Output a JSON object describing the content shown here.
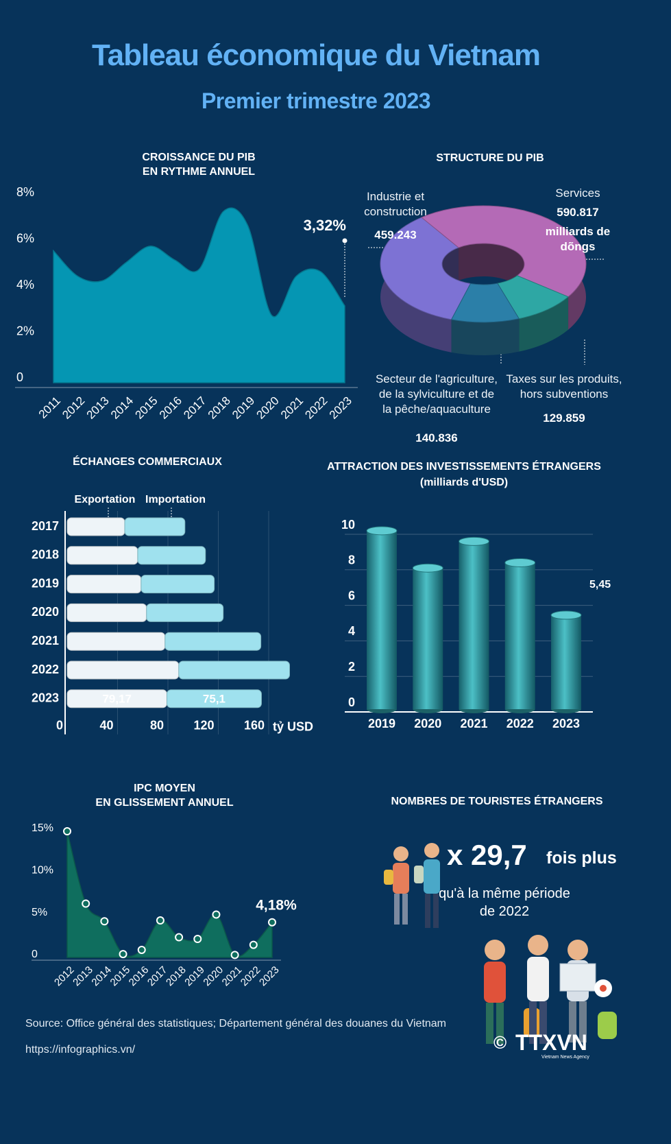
{
  "header": {
    "title": "Tableau économique du Vietnam",
    "subtitle": "Premier trimestre 2023"
  },
  "chart_data": [
    {
      "type": "area",
      "title": "CROISSANCE DU PIB\nEN RYTHME ANNUEL",
      "categories": [
        "2011",
        "2012",
        "2013",
        "2014",
        "2015",
        "2016",
        "2017",
        "2018",
        "2019",
        "2020",
        "2021",
        "2022",
        "2023"
      ],
      "values": [
        5.7,
        4.6,
        4.4,
        5.2,
        5.9,
        5.3,
        4.9,
        7.4,
        6.8,
        2.9,
        4.6,
        4.8,
        3.32
      ],
      "value_labels": [
        null,
        null,
        null,
        null,
        null,
        null,
        null,
        null,
        null,
        null,
        null,
        null,
        "3,32%"
      ],
      "color": "#0596b3",
      "ylim": [
        0,
        8
      ],
      "yticks": [
        0,
        {
          "value": 2,
          "label": "2%"
        },
        {
          "value": 4,
          "label": "4%"
        },
        {
          "value": 6,
          "label": "6%"
        },
        {
          "value": 8,
          "label": "8%"
        }
      ],
      "grid": false
    },
    {
      "type": "donut",
      "title": "STRUCTURE DU PIB",
      "categories": [
        "Industrie et\nconstruction",
        "Services",
        "Taxes sur les produits,\nhors subventions",
        "Secteur de l'agriculture,\nde la sylviculture  et de\nla pêche/aquaculture"
      ],
      "values": [
        459243,
        590817,
        129859,
        140836
      ],
      "value_labels": [
        "459.243",
        "590.817",
        "129.859",
        "140.836"
      ],
      "unit_label": "milliards de\ndõngs",
      "colors": [
        "#7d72d4",
        "#b46ab6",
        "#2ea7a4",
        "#2b7fa8"
      ]
    },
    {
      "type": "hbar-stacked",
      "title": "ÉCHANGES COMMERCIAUX",
      "categories": [
        "2017",
        "2018",
        "2019",
        "2020",
        "2021",
        "2022",
        "2023"
      ],
      "series": [
        {
          "name": "Exportation",
          "color": "#eef4f8",
          "values": [
            45.7,
            56.0,
            58.7,
            63.0,
            77.7,
            88.6,
            79.17
          ],
          "value_labels": [
            null,
            null,
            null,
            null,
            null,
            null,
            "79,17"
          ]
        },
        {
          "name": "Importation",
          "color": "#9fe1ee",
          "values": [
            47.8,
            53.8,
            58.1,
            60.9,
            76.1,
            88.0,
            75.1
          ],
          "value_labels": [
            null,
            null,
            null,
            null,
            null,
            null,
            "75,1"
          ]
        }
      ],
      "xlim": [
        0,
        180
      ],
      "xticks": [
        0,
        40,
        80,
        120,
        160
      ],
      "x_label": "tỷ USD",
      "grid": true
    },
    {
      "type": "bar",
      "title": "ATTRACTION DES INVESTISSEMENTS ÉTRANGERS",
      "subtitle": "(milliards d'USD)",
      "categories": [
        "2019",
        "2020",
        "2021",
        "2022",
        "2023"
      ],
      "values": [
        10.2,
        8.1,
        9.6,
        8.4,
        5.45
      ],
      "value_labels": [
        null,
        null,
        null,
        null,
        "5,45"
      ],
      "color": "#2fa3ab",
      "ylim": [
        0,
        10
      ],
      "yticks": [
        0,
        2,
        4,
        6,
        8,
        10
      ],
      "grid": true
    },
    {
      "type": "area",
      "title": "IPC MOYEN\nEN GLISSEMENT ANNUEL",
      "categories": [
        "2012",
        "2013",
        "2014",
        "2015",
        "2016",
        "2017",
        "2018",
        "2019",
        "2020",
        "2021",
        "2022",
        "2023"
      ],
      "values": [
        15.0,
        6.4,
        4.3,
        0.4,
        0.9,
        4.4,
        2.4,
        2.2,
        5.1,
        0.3,
        1.5,
        4.18
      ],
      "value_labels": [
        null,
        null,
        null,
        null,
        null,
        null,
        null,
        null,
        null,
        null,
        null,
        "4,18%"
      ],
      "color": "#0f6e5e",
      "ylim": [
        0,
        15
      ],
      "yticks": [
        0,
        {
          "value": 5,
          "label": "5%"
        },
        {
          "value": 10,
          "label": "10%"
        },
        {
          "value": 15,
          "label": "15%"
        }
      ],
      "markers": true
    }
  ],
  "tourism": {
    "title": "NOMBRES DE TOURISTES  ÉTRANGERS",
    "multiplier": "x 29,7",
    "suffix": "fois plus",
    "comparison": "qu'à la même période\nde 2022"
  },
  "footer": {
    "source": "Source: Office général des statistiques; Département général des douanes du Vietnam",
    "url": "https://infographics.vn/",
    "copyright": "©",
    "logo": "TTXVN",
    "logo_tagline": "Vietnam News Agency"
  }
}
